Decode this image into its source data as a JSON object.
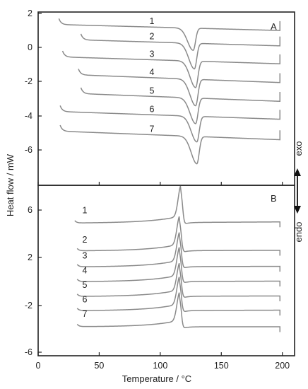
{
  "chart_data": [
    {
      "panel": "A",
      "type": "line",
      "xlabel": "Temperature / °C",
      "ylabel": "Heat flow / mW",
      "xlim": [
        0,
        210
      ],
      "ylim": [
        -8,
        2
      ],
      "xticks": [
        0,
        50,
        100,
        150,
        200
      ],
      "yticks": [
        2,
        0,
        -2,
        -4,
        -6
      ],
      "peak": "down",
      "series": [
        {
          "name": "1",
          "start_x": 17,
          "start_y": 1.35,
          "end_y": 1.0,
          "peak_x": 127,
          "peak_depth": 1.3
        },
        {
          "name": "2",
          "start_x": 35,
          "start_y": 0.45,
          "end_y": 0.1,
          "peak_x": 128,
          "peak_depth": 1.5
        },
        {
          "name": "3",
          "start_x": 20,
          "start_y": -0.55,
          "end_y": -0.95,
          "peak_x": 129,
          "peak_depth": 1.55
        },
        {
          "name": "4",
          "start_x": 33,
          "start_y": -1.6,
          "end_y": -2.05,
          "peak_x": 129,
          "peak_depth": 1.55
        },
        {
          "name": "5",
          "start_x": 35,
          "start_y": -2.7,
          "end_y": -3.15,
          "peak_x": 129,
          "peak_depth": 1.5
        },
        {
          "name": "6",
          "start_x": 18,
          "start_y": -3.75,
          "end_y": -4.2,
          "peak_x": 130,
          "peak_depth": 1.5
        },
        {
          "name": "7",
          "start_x": 18,
          "start_y": -4.9,
          "end_y": -5.4,
          "peak_x": 130,
          "peak_depth": 1.6
        }
      ]
    },
    {
      "panel": "B",
      "type": "line",
      "xlabel": "Temperature / °C",
      "ylabel": "Heat flow / mW",
      "xlim": [
        0,
        210
      ],
      "ylim": [
        -6,
        8.5
      ],
      "xticks": [
        0,
        50,
        100,
        150,
        200
      ],
      "yticks": [
        6,
        2,
        -2,
        -6
      ],
      "peak": "up",
      "series": [
        {
          "name": "1",
          "start_x": 30,
          "start_y": 4.9,
          "end_y": 5.0,
          "peak_x": 117,
          "peak_height": 2.6
        },
        {
          "name": "2",
          "start_x": 32,
          "start_y": 2.55,
          "end_y": 2.6,
          "peak_x": 116,
          "peak_height": 2.4
        },
        {
          "name": "3",
          "start_x": 32,
          "start_y": 1.2,
          "end_y": 1.25,
          "peak_x": 116,
          "peak_height": 2.4
        },
        {
          "name": "4",
          "start_x": 32,
          "start_y": -0.05,
          "end_y": 0.0,
          "peak_x": 116,
          "peak_height": 2.4
        },
        {
          "name": "5",
          "start_x": 32,
          "start_y": -1.3,
          "end_y": -1.25,
          "peak_x": 116,
          "peak_height": 2.3
        },
        {
          "name": "6",
          "start_x": 32,
          "start_y": -2.5,
          "end_y": -2.45,
          "peak_x": 116,
          "peak_height": 2.35
        },
        {
          "name": "7",
          "start_x": 32,
          "start_y": -3.85,
          "end_y": -3.85,
          "peak_x": 116,
          "peak_height": 2.4
        }
      ]
    }
  ],
  "side_labels": {
    "exo": "exo",
    "endo": "endo"
  },
  "colors": {
    "curve": "#8a8a8a",
    "axis": "#222222"
  }
}
